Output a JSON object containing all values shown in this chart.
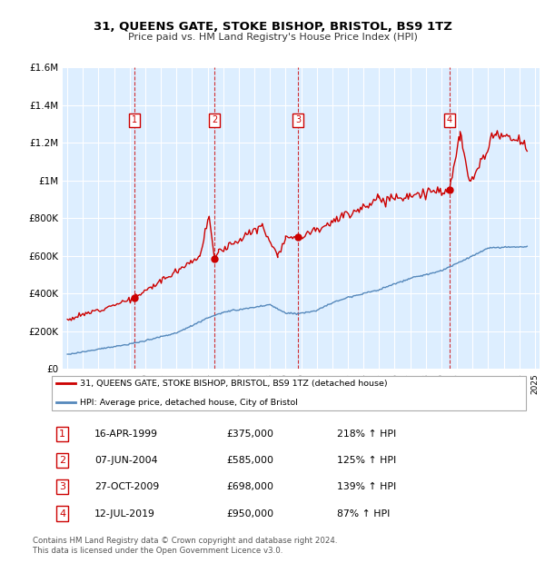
{
  "title": "31, QUEENS GATE, STOKE BISHOP, BRISTOL, BS9 1TZ",
  "subtitle": "Price paid vs. HM Land Registry's House Price Index (HPI)",
  "legend_label1": "31, QUEENS GATE, STOKE BISHOP, BRISTOL, BS9 1TZ (detached house)",
  "legend_label2": "HPI: Average price, detached house, City of Bristol",
  "footer1": "Contains HM Land Registry data © Crown copyright and database right 2024.",
  "footer2": "This data is licensed under the Open Government Licence v3.0.",
  "red_color": "#cc0000",
  "blue_color": "#5588bb",
  "background_color": "#ddeeff",
  "grid_color": "#ffffff",
  "ylim": [
    0,
    1600000
  ],
  "yticks": [
    0,
    200000,
    400000,
    600000,
    800000,
    1000000,
    1200000,
    1400000,
    1600000
  ],
  "ytick_labels": [
    "£0",
    "£200K",
    "£400K",
    "£600K",
    "£800K",
    "£1M",
    "£1.2M",
    "£1.4M",
    "£1.6M"
  ],
  "xlim_start": 1994.7,
  "xlim_end": 2025.3,
  "sale_points": [
    {
      "num": 1,
      "year": 1999.29,
      "price": 375000,
      "date": "16-APR-1999",
      "pct": "218%",
      "dir": "↑"
    },
    {
      "num": 2,
      "year": 2004.44,
      "price": 585000,
      "date": "07-JUN-2004",
      "pct": "125%",
      "dir": "↑"
    },
    {
      "num": 3,
      "year": 2009.82,
      "price": 698000,
      "date": "27-OCT-2009",
      "pct": "139%",
      "dir": "↑"
    },
    {
      "num": 4,
      "year": 2019.53,
      "price": 950000,
      "date": "12-JUL-2019",
      "pct": "87%",
      "dir": "↑"
    }
  ],
  "table_rows": [
    {
      "num": "1",
      "date": "16-APR-1999",
      "price": "£375,000",
      "pct": "218% ↑ HPI"
    },
    {
      "num": "2",
      "date": "07-JUN-2004",
      "price": "£585,000",
      "pct": "125% ↑ HPI"
    },
    {
      "num": "3",
      "date": "27-OCT-2009",
      "price": "£698,000",
      "pct": "139% ↑ HPI"
    },
    {
      "num": "4",
      "date": "12-JUL-2019",
      "price": "£950,000",
      "pct": "87% ↑ HPI"
    }
  ]
}
